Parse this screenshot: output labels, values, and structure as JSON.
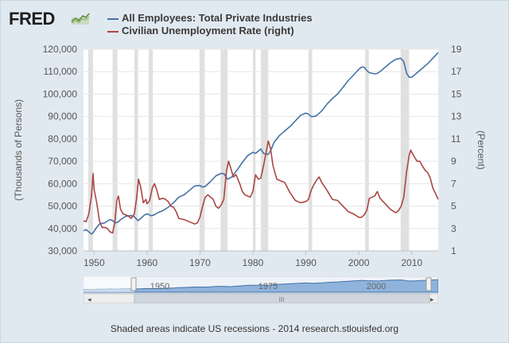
{
  "header": {
    "logo_text": "FRED",
    "logo_icon": "sparkline-icon"
  },
  "legend": [
    {
      "label": "All Employees: Total Private Industries",
      "color": "#4572a7"
    },
    {
      "label": "Civilian Unemployment Rate (right)",
      "color": "#aa4643"
    }
  ],
  "footer": {
    "text": "Shaded areas indicate US recessions - 2014 research.stlouisfed.org"
  },
  "navigator": {
    "tick_labels": [
      "1950",
      "1975",
      "2000"
    ],
    "scroll_left_icon": "arrow-left-icon",
    "scroll_right_icon": "arrow-right-icon",
    "scroll_grip_icon": "grip-icon",
    "scroll_grip_text": "III"
  },
  "chart_data": {
    "type": "line",
    "xlim": [
      1948,
      2015
    ],
    "x_ticks": [
      1950,
      1960,
      1970,
      1980,
      1990,
      2000,
      2010
    ],
    "x_tick_labels": [
      "1950",
      "1960",
      "1970",
      "1980",
      "1990",
      "2000",
      "2010"
    ],
    "y_left": {
      "label": "(Thousands of Persons)",
      "range": [
        30000,
        120000
      ],
      "ticks": [
        30000,
        40000,
        50000,
        60000,
        70000,
        80000,
        90000,
        100000,
        110000,
        120000
      ],
      "tick_labels": [
        "30,000",
        "40,000",
        "50,000",
        "60,000",
        "70,000",
        "80,000",
        "90,000",
        "100,000",
        "110,000",
        "120,000"
      ]
    },
    "y_right": {
      "label": "(Percent)",
      "range": [
        1,
        19
      ],
      "ticks": [
        1,
        3,
        5,
        7,
        9,
        11,
        13,
        15,
        17,
        19
      ],
      "tick_labels": [
        "1",
        "3",
        "5",
        "7",
        "9",
        "11",
        "13",
        "15",
        "17",
        "19"
      ]
    },
    "recessions": [
      [
        1948.9,
        1949.8
      ],
      [
        1953.5,
        1954.4
      ],
      [
        1957.6,
        1958.3
      ],
      [
        1960.3,
        1961.1
      ],
      [
        1969.9,
        1970.9
      ],
      [
        1973.9,
        1975.2
      ],
      [
        1980.0,
        1980.5
      ],
      [
        1981.5,
        1982.9
      ],
      [
        1990.5,
        1991.2
      ],
      [
        2001.2,
        2001.9
      ],
      [
        2007.9,
        2009.5
      ]
    ],
    "series": [
      {
        "name": "All Employees: Total Private Industries",
        "axis": "left",
        "x": [
          1948,
          1948.5,
          1949.0,
          1949.5,
          1949.8,
          1950.2,
          1950.5,
          1951.0,
          1952.0,
          1953.0,
          1953.5,
          1954.0,
          1954.5,
          1955.0,
          1956.0,
          1957.0,
          1957.6,
          1958.3,
          1958.8,
          1959.5,
          1960.0,
          1960.8,
          1961.3,
          1962.0,
          1963.0,
          1964.0,
          1965.0,
          1966.0,
          1967.0,
          1968.0,
          1969.0,
          1969.9,
          1970.5,
          1971.0,
          1972.0,
          1973.0,
          1973.9,
          1974.5,
          1975.2,
          1976.0,
          1977.0,
          1978.0,
          1979.0,
          1980.0,
          1980.5,
          1981.0,
          1981.5,
          1982.0,
          1982.9,
          1983.5,
          1984.0,
          1985.0,
          1986.0,
          1987.0,
          1988.0,
          1989.0,
          1990.0,
          1990.5,
          1991.0,
          1991.5,
          1992.0,
          1993.0,
          1994.0,
          1995.0,
          1996.0,
          1997.0,
          1998.0,
          1999.0,
          2000.0,
          2000.5,
          2001.0,
          2001.5,
          2002.0,
          2003.0,
          2003.5,
          2004.0,
          2005.0,
          2006.0,
          2007.0,
          2007.9,
          2008.5,
          2009.0,
          2009.5,
          2010.0,
          2011.0,
          2012.0,
          2013.0,
          2014.0,
          2015.0
        ],
        "values": [
          39000,
          39500,
          38500,
          37500,
          38000,
          39500,
          40500,
          42000,
          42500,
          44000,
          43500,
          42500,
          42800,
          44000,
          45500,
          45800,
          45200,
          43500,
          44500,
          46000,
          46500,
          45700,
          46000,
          47000,
          48000,
          49500,
          51500,
          54000,
          55000,
          57000,
          59000,
          59200,
          58500,
          58800,
          61000,
          63500,
          64500,
          64500,
          62000,
          63000,
          66000,
          69500,
          72500,
          74000,
          73500,
          74500,
          75500,
          73500,
          73000,
          75500,
          78500,
          81500,
          83500,
          85500,
          88000,
          90500,
          91500,
          91000,
          90000,
          90000,
          90300,
          92500,
          95500,
          98000,
          100000,
          103000,
          106000,
          108500,
          111000,
          112000,
          112000,
          110500,
          109500,
          109000,
          109200,
          110000,
          112000,
          114000,
          115500,
          116000,
          114500,
          109500,
          107500,
          107500,
          109500,
          111500,
          113500,
          116000,
          118500
        ]
      },
      {
        "name": "Civilian Unemployment Rate (right)",
        "axis": "right",
        "x": [
          1948,
          1948.5,
          1949.0,
          1949.5,
          1949.8,
          1950.0,
          1950.5,
          1951.0,
          1951.5,
          1952.0,
          1952.5,
          1953.0,
          1953.5,
          1953.9,
          1954.3,
          1954.6,
          1955.0,
          1955.5,
          1956.0,
          1956.5,
          1957.0,
          1957.6,
          1958.0,
          1958.4,
          1958.8,
          1959.3,
          1959.8,
          1960.0,
          1960.5,
          1961.0,
          1961.4,
          1961.8,
          1962.3,
          1963.0,
          1963.5,
          1964.0,
          1964.5,
          1965.0,
          1965.5,
          1966.0,
          1967.0,
          1968.0,
          1969.0,
          1969.5,
          1970.0,
          1970.5,
          1971.0,
          1971.5,
          1972.0,
          1972.5,
          1973.0,
          1973.5,
          1974.0,
          1974.5,
          1975.0,
          1975.4,
          1975.8,
          1976.3,
          1976.8,
          1977.5,
          1978.0,
          1978.5,
          1979.0,
          1979.5,
          1980.0,
          1980.5,
          1981.0,
          1981.5,
          1982.0,
          1982.5,
          1982.9,
          1983.3,
          1983.8,
          1984.5,
          1985.0,
          1986.0,
          1987.0,
          1988.0,
          1989.0,
          1990.0,
          1990.5,
          1991.0,
          1991.5,
          1992.0,
          1992.5,
          1993.0,
          1994.0,
          1995.0,
          1996.0,
          1997.0,
          1998.0,
          1999.0,
          2000.0,
          2000.5,
          2001.0,
          2001.5,
          2002.0,
          2002.5,
          2003.0,
          2003.5,
          2004.0,
          2005.0,
          2006.0,
          2007.0,
          2007.5,
          2008.0,
          2008.5,
          2009.0,
          2009.5,
          2009.8,
          2010.0,
          2010.5,
          2011.0,
          2011.5,
          2012.0,
          2012.5,
          2013.0,
          2013.5,
          2014.0,
          2014.5,
          2015.0
        ],
        "values": [
          3.7,
          3.6,
          4.3,
          5.9,
          7.9,
          6.5,
          5.3,
          3.7,
          3.1,
          3.1,
          3.0,
          2.7,
          2.6,
          3.5,
          5.5,
          5.9,
          4.7,
          4.3,
          4.2,
          4.1,
          3.9,
          4.3,
          5.6,
          7.4,
          6.7,
          5.3,
          5.6,
          5.2,
          5.5,
          6.6,
          7.0,
          6.5,
          5.6,
          5.7,
          5.6,
          5.4,
          5.0,
          4.9,
          4.5,
          3.9,
          3.8,
          3.6,
          3.4,
          3.5,
          4.0,
          5.0,
          5.8,
          6.0,
          5.8,
          5.6,
          5.0,
          4.8,
          5.1,
          5.6,
          8.1,
          9.0,
          8.4,
          7.6,
          7.8,
          7.0,
          6.3,
          6.0,
          5.9,
          5.8,
          6.3,
          7.8,
          7.4,
          7.5,
          8.6,
          9.8,
          10.8,
          10.2,
          8.6,
          7.4,
          7.3,
          7.1,
          6.2,
          5.5,
          5.3,
          5.4,
          5.6,
          6.4,
          6.9,
          7.3,
          7.6,
          7.1,
          6.4,
          5.6,
          5.5,
          5.0,
          4.5,
          4.3,
          4.0,
          4.0,
          4.2,
          4.6,
          5.7,
          5.8,
          5.9,
          6.3,
          5.7,
          5.2,
          4.7,
          4.4,
          4.6,
          5.0,
          5.8,
          8.0,
          9.5,
          10.0,
          9.8,
          9.4,
          9.0,
          9.0,
          8.6,
          8.2,
          8.0,
          7.5,
          6.6,
          6.1,
          5.6
        ]
      }
    ]
  }
}
